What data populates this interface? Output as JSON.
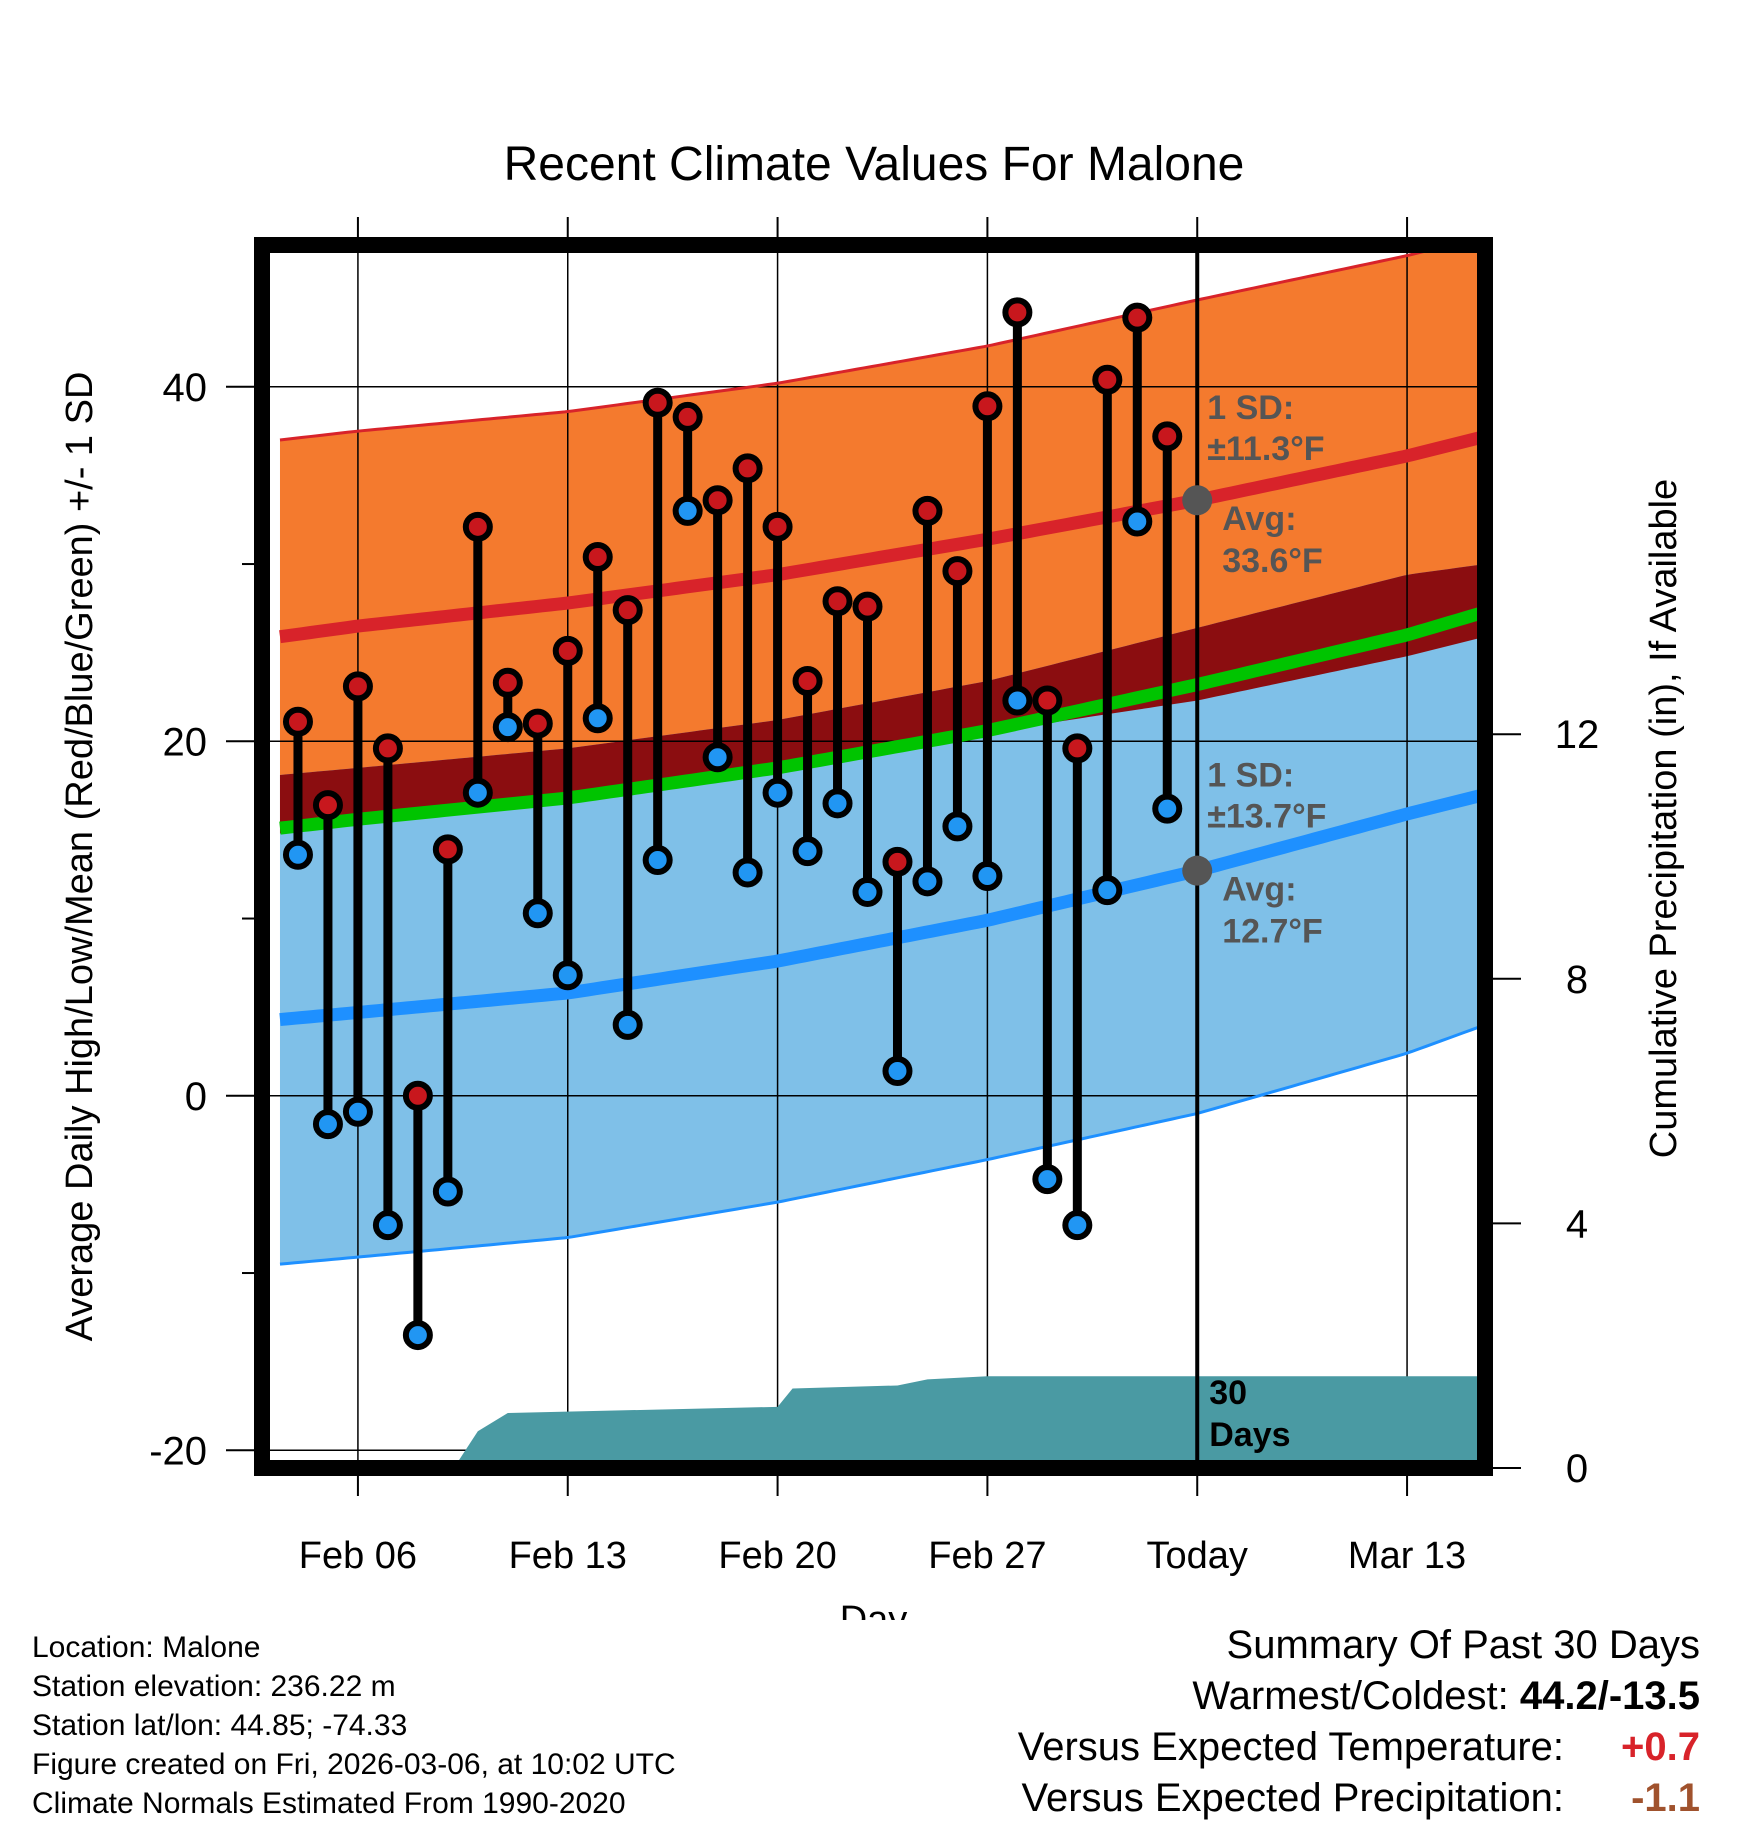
{
  "chart_data": {
    "type": "line",
    "title": "Recent Climate Values For Malone",
    "xlabel": "Day",
    "ylabel": "Average Daily High/Low/Mean (Red/Blue/Green) +/- 1 SD",
    "y2label": "Cumulative Precipitation (in), If Available",
    "xlim": [
      -3.2,
      37.6
    ],
    "ylim": [
      -21,
      48
    ],
    "y2lim": [
      0,
      20
    ],
    "xticks": [
      {
        "day": 0,
        "label": "Feb 06"
      },
      {
        "day": 7,
        "label": "Feb 13"
      },
      {
        "day": 14,
        "label": "Feb 20"
      },
      {
        "day": 21,
        "label": "Feb 27"
      },
      {
        "day": 28,
        "label": "Today"
      },
      {
        "day": 35,
        "label": "Mar 13"
      }
    ],
    "yticks": [
      -20,
      0,
      20,
      40
    ],
    "y2ticks": [
      0,
      4,
      8,
      12
    ],
    "normals": {
      "days": [
        -2.6,
        0,
        7,
        14,
        21,
        28,
        35,
        37.6
      ],
      "high_mean": [
        25.9,
        26.5,
        27.8,
        29.4,
        31.4,
        33.6,
        36.1,
        37.2
      ],
      "high_upper": [
        37.0,
        37.5,
        38.6,
        40.2,
        42.3,
        44.9,
        47.4,
        48.5
      ],
      "low_mean": [
        4.3,
        4.7,
        5.8,
        7.6,
        9.9,
        12.7,
        15.9,
        17.0
      ],
      "low_lower": [
        -9.5,
        -9.1,
        -8.0,
        -6.0,
        -3.6,
        -1.0,
        2.4,
        4.0
      ],
      "avg_mean": [
        15.1,
        15.6,
        16.8,
        18.5,
        20.6,
        23.2,
        26.0,
        27.3
      ]
    },
    "observed": {
      "days": [
        -2,
        -1,
        0,
        1,
        2,
        3,
        4,
        5,
        6,
        7,
        8,
        9,
        10,
        11,
        12,
        13,
        14,
        15,
        16,
        17,
        18,
        19,
        20,
        21,
        22,
        23,
        24,
        25,
        26
      ],
      "highs": [
        21.1,
        16.4,
        23.1,
        19.6,
        0.0,
        13.9,
        32.1,
        23.3,
        21.0,
        25.1,
        30.4,
        27.4,
        39.1,
        38.3,
        33.6,
        35.4,
        32.1,
        23.4,
        27.9,
        27.6,
        13.2,
        33.0,
        29.6,
        38.9,
        44.2,
        22.3,
        19.6,
        40.4,
        43.9
      ],
      "lows": [
        13.6,
        -1.6,
        -0.9,
        -7.3,
        -13.5,
        -5.4,
        17.1,
        20.8,
        10.3,
        6.8,
        21.3,
        4.0,
        13.3,
        33.0,
        19.1,
        12.6,
        17.1,
        13.8,
        16.5,
        11.5,
        1.4,
        12.1,
        15.2,
        12.4,
        22.3,
        -4.7,
        -7.3,
        11.6,
        32.4
      ]
    },
    "observed_extra": {
      "day": 27,
      "high": 37.2,
      "low": 16.2
    },
    "precip_cumulative": {
      "days": [
        3.2,
        4,
        5,
        14,
        14.5,
        18,
        19,
        21,
        28,
        37.6
      ],
      "values": [
        0,
        0.6,
        0.9,
        1.0,
        1.3,
        1.35,
        1.45,
        1.5,
        1.5,
        1.5
      ]
    },
    "annotations": {
      "high_sd": "1 SD:",
      "high_sd_val": "±11.3°F",
      "high_avg": "Avg:",
      "high_avg_val": "33.6°F",
      "low_sd": "1 SD:",
      "low_sd_val": "±13.7°F",
      "low_avg": "Avg:",
      "low_avg_val": "12.7°F",
      "period_1": "30",
      "period_2": "Days"
    },
    "colors": {
      "high_band": "#f47a2e",
      "high_line": "#d8232a",
      "low_band": "#7fc0e8",
      "low_line": "#1e90ff",
      "overlap": "#8b0d10",
      "mean_line": "#00c400",
      "precip": "#4a9aa3",
      "dot_high": "#c8171d",
      "dot_low": "#2196f3",
      "marker": "#555555",
      "annot": "#555555"
    }
  },
  "footer": {
    "location": "Location: Malone",
    "elevation": "Station elevation: 236.22 m",
    "latlon": "Station lat/lon: 44.85; -74.33",
    "created": "Figure created on Fri, 2026-03-06, at 10:02 UTC",
    "normals": "Climate Normals Estimated From 1990-2020"
  },
  "summary": {
    "title": "Summary Of Past 30 Days",
    "warm_cold_label": "Warmest/Coldest:",
    "warm_cold_value": "44.2/-13.5",
    "temp_label": "Versus Expected Temperature:",
    "temp_value": "+0.7",
    "temp_color": "#d8232a",
    "precip_label": "Versus Expected Precipitation:",
    "precip_value": "-1.1",
    "precip_color": "#a0522d"
  }
}
